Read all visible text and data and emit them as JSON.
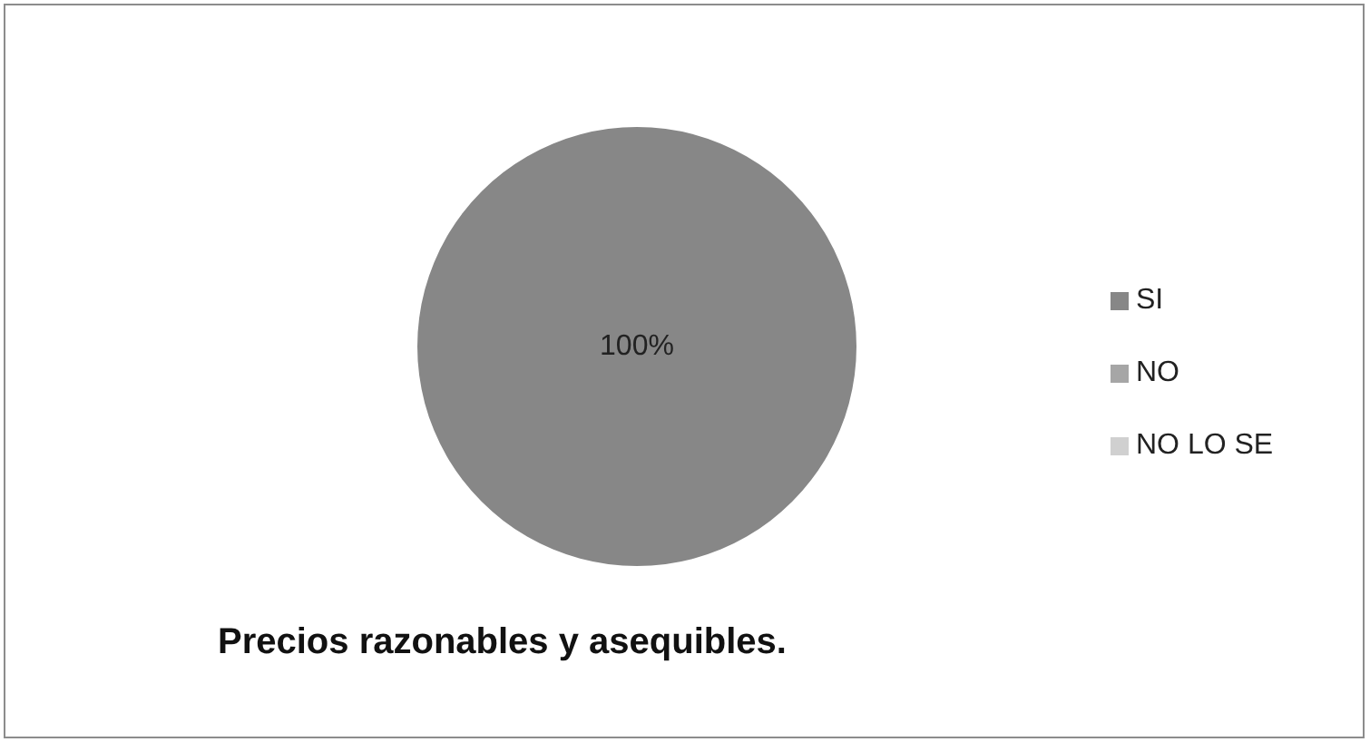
{
  "chart_data": {
    "type": "pie",
    "title": "Precios razonables y asequibles.",
    "categories": [
      "SI",
      "NO",
      "NO LO SE"
    ],
    "values": [
      100,
      0,
      0
    ],
    "colors": [
      "#878787",
      "#a6a6a6",
      "#d0d0d0"
    ],
    "value_labels": [
      "100%",
      null,
      null
    ],
    "legend": "right"
  }
}
